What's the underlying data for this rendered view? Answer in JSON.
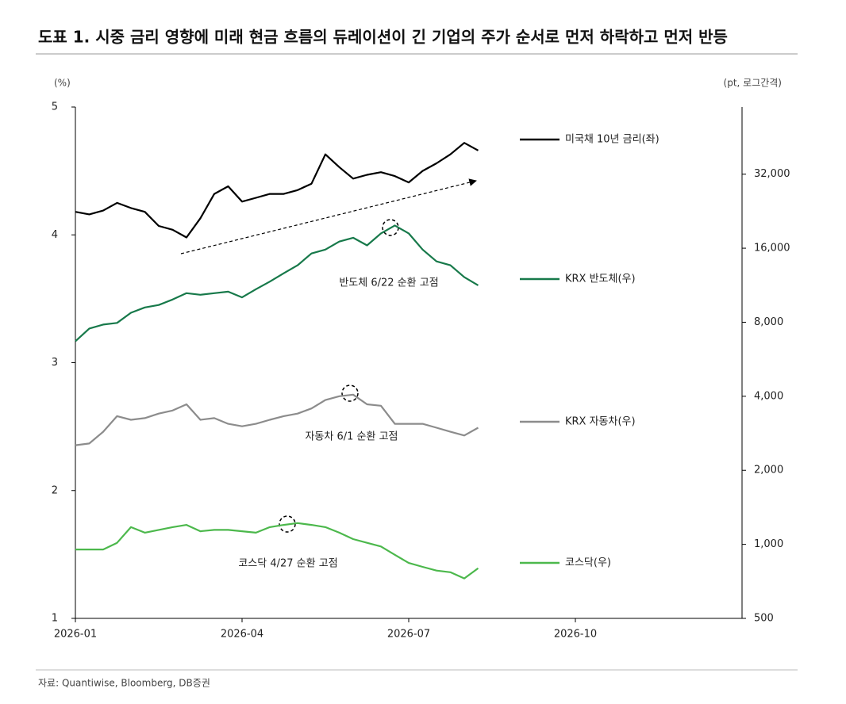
{
  "chart_data": {
    "type": "line",
    "title": "도표 1. 시중 금리 영향에 미래 현금 흐름의 듀레이션이 긴 기업의 주가 순서로 먼저 하락하고 먼저 반등",
    "source": "자료: Quantiwise, Bloomberg, DB증권",
    "y_label": "(%)",
    "y2_label": "(pt, 로그간격)",
    "x": [
      0,
      0.25,
      0.5,
      0.75,
      1,
      1.25,
      1.5,
      1.75,
      2,
      2.25,
      2.5,
      2.75,
      3,
      3.25,
      3.5,
      3.75,
      4,
      4.25,
      4.5,
      4.75,
      5,
      5.25,
      5.5,
      5.75,
      6,
      6.25,
      6.5,
      6.75,
      7,
      7.25
    ],
    "xlim": [
      0,
      12
    ],
    "xticks": [
      {
        "value": 0,
        "label": "2026-01"
      },
      {
        "value": 3,
        "label": "2026-04"
      },
      {
        "value": 6,
        "label": "2026-07"
      },
      {
        "value": 9,
        "label": "2026-10"
      }
    ],
    "ylim": [
      1,
      5
    ],
    "yticks": [
      1,
      2,
      3,
      4,
      5
    ],
    "y2lim": [
      500,
      60000
    ],
    "y2_log": true,
    "y2ticks": [
      500,
      {
        "value": 1000,
        "label": "1,000"
      },
      {
        "value": 2000,
        "label": "2,000"
      },
      {
        "value": 4000,
        "label": "4,000"
      },
      {
        "value": 8000,
        "label": "8,000"
      },
      {
        "value": 16000,
        "label": "16,000"
      },
      {
        "value": 32000,
        "label": "32,000"
      }
    ],
    "series": [
      {
        "name": "미국채 10년 금리(좌)",
        "color": "#000000",
        "values": [
          4.18,
          4.16,
          4.19,
          4.25,
          4.21,
          4.18,
          4.07,
          4.04,
          3.98,
          4.13,
          4.32,
          4.38,
          4.26,
          4.29,
          4.32,
          4.32,
          4.35,
          4.4,
          4.63,
          4.53,
          4.44,
          4.47,
          4.49,
          4.46,
          4.41,
          4.5,
          4.56,
          4.63,
          4.72,
          4.66
        ]
      },
      {
        "name": "KRX 반도체(우)",
        "color": "#17794a",
        "axis": "y2",
        "values": [
          6700,
          7540,
          7830,
          7950,
          8740,
          9190,
          9400,
          9900,
          10500,
          10350,
          10500,
          10650,
          10100,
          10900,
          11700,
          12650,
          13640,
          15230,
          15800,
          17030,
          17650,
          16430,
          18380,
          19800,
          18380,
          15800,
          14140,
          13640,
          12200,
          11300
        ]
      },
      {
        "name": "KRX 자동차(우)",
        "color": "#8c8c8c",
        "axis": "y2",
        "values": [
          2530,
          2570,
          2870,
          3320,
          3210,
          3260,
          3400,
          3500,
          3710,
          3210,
          3260,
          3090,
          3020,
          3090,
          3210,
          3320,
          3400,
          3570,
          3860,
          4000,
          4060,
          3710,
          3660,
          3090,
          3090,
          3090,
          2980,
          2870,
          2770,
          2980
        ]
      },
      {
        "name": "코스닥(우)",
        "color": "#4cb84c",
        "axis": "y2",
        "values": [
          953,
          953,
          953,
          1014,
          1175,
          1115,
          1145,
          1175,
          1200,
          1130,
          1145,
          1145,
          1130,
          1115,
          1175,
          1200,
          1220,
          1200,
          1175,
          1115,
          1050,
          1014,
          980,
          907,
          840,
          810,
          782,
          770,
          727,
          800
        ]
      }
    ],
    "annotations": [
      "반도체 6/22 순환 고점",
      "자동차 6/1 순환 고점",
      "코스닥 4/27 순환 고점"
    ]
  }
}
